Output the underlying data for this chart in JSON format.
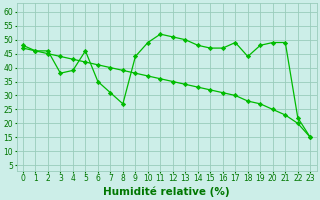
{
  "line1_x": [
    0,
    1,
    2,
    3,
    4,
    5,
    6,
    7,
    8,
    9,
    10,
    11,
    12,
    13,
    14,
    15,
    16,
    17,
    18,
    19,
    20,
    21,
    22,
    23
  ],
  "line1_y": [
    48,
    46,
    46,
    38,
    39,
    46,
    35,
    31,
    27,
    44,
    49,
    52,
    51,
    50,
    48,
    47,
    47,
    49,
    44,
    48,
    49,
    49,
    22,
    15
  ],
  "line2_x": [
    0,
    1,
    2,
    3,
    4,
    5,
    6,
    7,
    8,
    9,
    10,
    11,
    12,
    13,
    14,
    15,
    16,
    17,
    18,
    19,
    20,
    21,
    22,
    23
  ],
  "line2_y": [
    47,
    46,
    45,
    44,
    43,
    42,
    41,
    40,
    39,
    38,
    37,
    36,
    35,
    34,
    33,
    32,
    31,
    30,
    28,
    27,
    25,
    23,
    20,
    15
  ],
  "line_color": "#00bb00",
  "bg_color": "#cceee8",
  "grid_color": "#99ccbb",
  "xlabel": "Humidité relative (%)",
  "xlabel_color": "#007700",
  "ylabel_ticks": [
    5,
    10,
    15,
    20,
    25,
    30,
    35,
    40,
    45,
    50,
    55,
    60
  ],
  "xlim": [
    -0.5,
    23.5
  ],
  "ylim": [
    3,
    63
  ],
  "xtick_labels": [
    "0",
    "1",
    "2",
    "3",
    "4",
    "5",
    "6",
    "7",
    "8",
    "9",
    "10",
    "11",
    "12",
    "13",
    "14",
    "15",
    "16",
    "17",
    "18",
    "19",
    "20",
    "21",
    "22",
    "23"
  ],
  "tick_color": "#007700",
  "tick_fontsize": 5.5,
  "xlabel_fontsize": 7.5
}
